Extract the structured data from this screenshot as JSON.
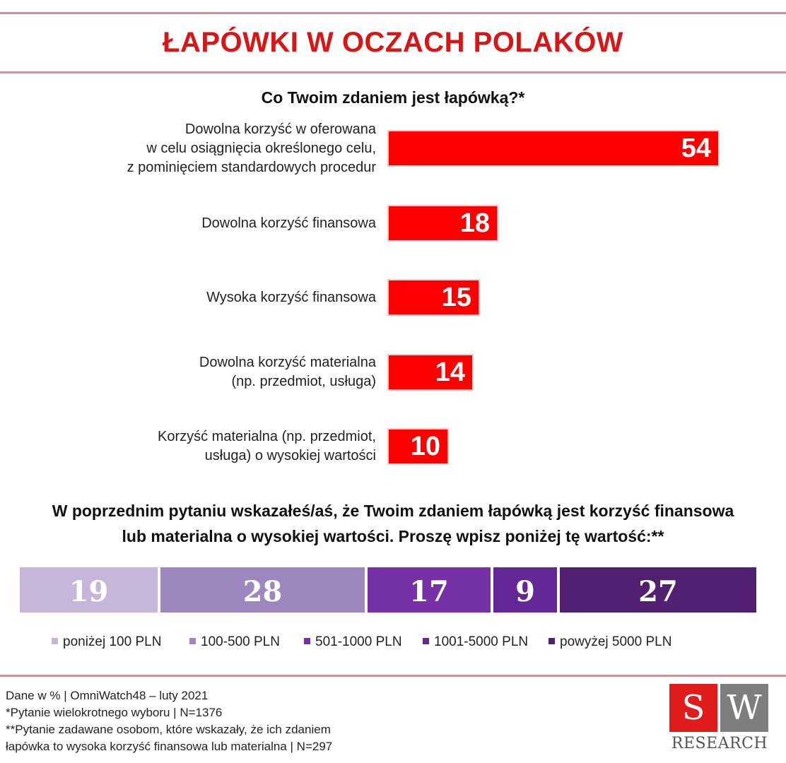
{
  "header": {
    "title": "ŁAPÓWKI W OCZACH POLAKÓW"
  },
  "chart_data": [
    {
      "type": "bar",
      "orientation": "horizontal",
      "title": "Co Twoim zdaniem jest łapówką?*",
      "categories": [
        "Dowolna korzyść w oferowana\nw celu osiągnięcia określonego celu,\nz pominięciem standardowych procedur",
        "Dowolna korzyść finansowa",
        "Wysoka korzyść finansowa",
        "Dowolna korzyść materialna\n(np. przedmiot, usługa)",
        "Korzyść materialna (np. przedmiot,\nusługa) o wysokiej wartości"
      ],
      "values": [
        54,
        18,
        15,
        14,
        10
      ],
      "xlim": [
        0,
        54
      ],
      "color": "#ff0000",
      "xlabel": "",
      "ylabel": ""
    },
    {
      "type": "bar",
      "orientation": "horizontal-stacked",
      "title": "W poprzednim pytaniu wskazałeś/aś, że Twoim zdaniem łapówką jest korzyść finansowa\nlub materialna o wysokiej wartości. Proszę wpisz poniżej tę wartość:**",
      "series": [
        {
          "name": "poniżej 100 PLN",
          "value": 19,
          "color": "#c6b6d9"
        },
        {
          "name": "100-500 PLN",
          "value": 28,
          "color": "#9e86be"
        },
        {
          "name": "501-1000 PLN",
          "value": 17,
          "color": "#7631a6"
        },
        {
          "name": "1001-5000 PLN",
          "value": 9,
          "color": "#632896"
        },
        {
          "name": "powyżej 5000 PLN",
          "value": 27,
          "color": "#522070"
        }
      ],
      "legend": "bottom"
    }
  ],
  "footer": {
    "lines": [
      "Dane w % | OmniWatch48 – luty 2021",
      "*Pytanie wielokrotnego wyboru | N=1376",
      "**Pytanie zadawane osobom, które wskazały, że ich zdaniem",
      "łapówka to wysoka korzyść finansowa lub materialna | N=297"
    ]
  },
  "logo": {
    "letter1": "S",
    "letter2": "W",
    "subtitle": "RESEARCH"
  }
}
